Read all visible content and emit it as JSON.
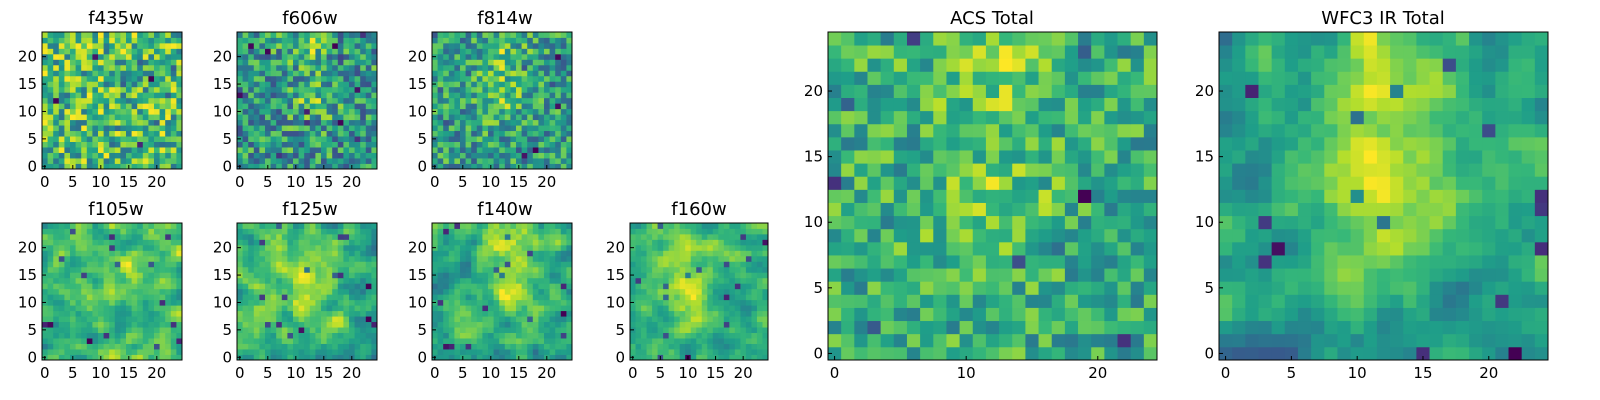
{
  "chart_data": [
    {
      "type": "heatmap",
      "title": "f435w",
      "size": 25,
      "seed": 11,
      "smooth": 0,
      "blobs": [],
      "xticks": [
        0,
        5,
        10,
        15,
        20
      ],
      "yticks": [
        0,
        5,
        10,
        15,
        20
      ]
    },
    {
      "type": "heatmap",
      "title": "f606w",
      "size": 25,
      "seed": 23,
      "smooth": 0,
      "blobs": [
        [
          12,
          22,
          2.5,
          0.45
        ],
        [
          13,
          12,
          2.5,
          0.4
        ]
      ],
      "xticks": [
        0,
        5,
        10,
        15,
        20
      ],
      "yticks": [
        0,
        5,
        10,
        15,
        20
      ]
    },
    {
      "type": "heatmap",
      "title": "f814w",
      "size": 25,
      "seed": 37,
      "smooth": 0,
      "blobs": [
        [
          12,
          20,
          3,
          0.4
        ],
        [
          12,
          12,
          3,
          0.35
        ]
      ],
      "xticks": [
        0,
        5,
        10,
        15,
        20
      ],
      "yticks": [
        0,
        5,
        10,
        15,
        20
      ]
    },
    {
      "type": "heatmap",
      "title": "f105w",
      "size": 25,
      "seed": 41,
      "smooth": 1,
      "blobs": [
        [
          13,
          15,
          3,
          0.2
        ]
      ],
      "xticks": [
        0,
        5,
        10,
        15,
        20
      ],
      "yticks": [
        0,
        5,
        10,
        15,
        20
      ]
    },
    {
      "type": "heatmap",
      "title": "f125w",
      "size": 25,
      "seed": 53,
      "smooth": 1,
      "blobs": [
        [
          12,
          20,
          3,
          0.3
        ],
        [
          12,
          11,
          3,
          0.25
        ]
      ],
      "xticks": [
        0,
        5,
        10,
        15,
        20
      ],
      "yticks": [
        0,
        5,
        10,
        15,
        20
      ]
    },
    {
      "type": "heatmap",
      "title": "f140w",
      "size": 25,
      "seed": 67,
      "smooth": 1,
      "blobs": [
        [
          13,
          21,
          3,
          0.3
        ],
        [
          14,
          13,
          3,
          0.3
        ]
      ],
      "xticks": [
        0,
        5,
        10,
        15,
        20
      ],
      "yticks": [
        0,
        5,
        10,
        15,
        20
      ]
    },
    {
      "type": "heatmap",
      "title": "f160w",
      "size": 25,
      "seed": 71,
      "smooth": 1,
      "blobs": [
        [
          10,
          20,
          3,
          0.35
        ],
        [
          10,
          11,
          3,
          0.35
        ]
      ],
      "xticks": [
        0,
        5,
        10,
        15,
        20
      ],
      "yticks": [
        0,
        5,
        10,
        15,
        20
      ]
    },
    {
      "type": "heatmap",
      "title": "ACS Total",
      "size": 25,
      "seed": 83,
      "smooth": 0,
      "blobs": [
        [
          12,
          22,
          3,
          0.5
        ],
        [
          12,
          11,
          3,
          0.45
        ]
      ],
      "xticks": [
        0,
        10,
        20
      ],
      "yticks": [
        0,
        5,
        10,
        15,
        20
      ]
    },
    {
      "type": "heatmap",
      "title": "WFC3 IR Total",
      "size": 25,
      "seed": 97,
      "smooth": 1,
      "blobs": [
        [
          12,
          21,
          3.5,
          0.5
        ],
        [
          12,
          12,
          3.5,
          0.45
        ]
      ],
      "xticks": [
        0,
        5,
        10,
        15,
        20
      ],
      "yticks": [
        0,
        5,
        10,
        15,
        20
      ]
    }
  ]
}
